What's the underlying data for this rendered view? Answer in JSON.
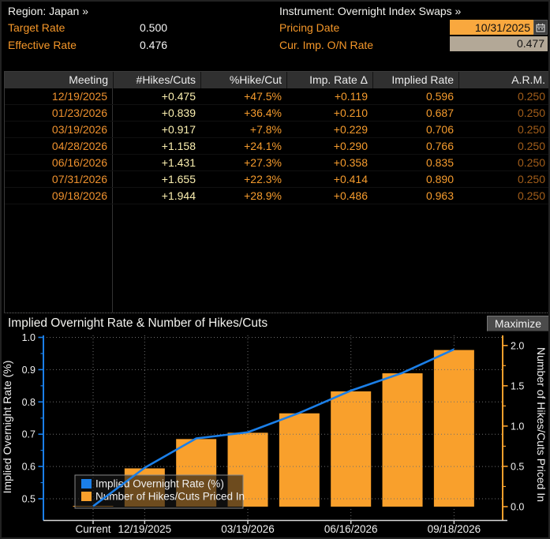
{
  "header": {
    "region_label": "Region:",
    "region_value": "Japan »",
    "instrument_label": "Instrument:",
    "instrument_value": "Overnight Index Swaps »",
    "target_rate_label": "Target Rate",
    "target_rate_value": "0.500",
    "effective_rate_label": "Effective Rate",
    "effective_rate_value": "0.476",
    "pricing_date_label": "Pricing Date",
    "pricing_date_value": "10/31/2025",
    "cur_imp_label": "Cur. Imp. O/N Rate",
    "cur_imp_value": "0.477"
  },
  "table": {
    "columns": [
      "Meeting",
      "#Hikes/Cuts",
      "%Hike/Cut",
      "Imp. Rate Δ",
      "Implied Rate",
      "A.R.M."
    ],
    "rows": [
      [
        "12/19/2025",
        "+0.475",
        "+47.5%",
        "+0.119",
        "0.596",
        "0.250"
      ],
      [
        "01/23/2026",
        "+0.839",
        "+36.4%",
        "+0.210",
        "0.687",
        "0.250"
      ],
      [
        "03/19/2026",
        "+0.917",
        "+7.8%",
        "+0.229",
        "0.706",
        "0.250"
      ],
      [
        "04/28/2026",
        "+1.158",
        "+24.1%",
        "+0.290",
        "0.766",
        "0.250"
      ],
      [
        "06/16/2026",
        "+1.431",
        "+27.3%",
        "+0.358",
        "0.835",
        "0.250"
      ],
      [
        "07/31/2026",
        "+1.655",
        "+22.3%",
        "+0.414",
        "0.890",
        "0.250"
      ],
      [
        "09/18/2026",
        "+1.944",
        "+28.9%",
        "+0.486",
        "0.963",
        "0.250"
      ]
    ]
  },
  "chart_header": {
    "title": "Implied Overnight Rate & Number of Hikes/Cuts",
    "maximize_label": "Maximize"
  },
  "chart_data": {
    "type": "bar+line",
    "categories": [
      "Current",
      "12/19/2025",
      "01/23/2026",
      "03/19/2026",
      "04/28/2026",
      "06/16/2026",
      "07/31/2026",
      "09/18/2026"
    ],
    "x_tick_indices": [
      0,
      1,
      3,
      5,
      7
    ],
    "x_tick_labels": [
      "Current",
      "12/19/2025",
      "03/19/2026",
      "06/16/2026",
      "09/18/2026"
    ],
    "series": [
      {
        "name": "Implied Overnight Rate (%)",
        "type": "line",
        "axis": "left",
        "color": "#1b7fe8",
        "values": [
          0.477,
          0.596,
          0.687,
          0.706,
          0.766,
          0.835,
          0.89,
          0.963
        ]
      },
      {
        "name": "Number of Hikes/Cuts Priced In",
        "type": "bar",
        "axis": "right",
        "color": "#f9a02c",
        "values": [
          0.01,
          0.475,
          0.839,
          0.917,
          1.158,
          1.431,
          1.655,
          1.944
        ]
      }
    ],
    "left_axis": {
      "label": "Implied Overnight Rate (%)",
      "min": 0.5,
      "max": 1.0,
      "ticks": [
        0.5,
        0.6,
        0.7,
        0.8,
        0.9,
        1.0
      ],
      "color": "#1b7fe8"
    },
    "right_axis": {
      "label": "Number of Hikes/Cuts Priced In",
      "min": 0.0,
      "max": 2.0,
      "ticks": [
        0.0,
        0.5,
        1.0,
        1.5,
        2.0
      ],
      "color": "#f9a02c"
    },
    "legend": [
      "Implied Overnight Rate (%)",
      "Number of Hikes/Cuts Priced In"
    ],
    "legend_position": "bottom-left",
    "grid": true,
    "grid_color": "#6e6e6e",
    "text_color": "#f0f0f0"
  },
  "colors": {
    "accent_orange": "#f59729",
    "pale_yellow": "#fcf0b0",
    "dim_orange": "#a35e1a",
    "field_orange": "#f9a83e",
    "field_tan": "#b3a897",
    "line_blue": "#1b7fe8",
    "bar_orange": "#f9a02c"
  }
}
